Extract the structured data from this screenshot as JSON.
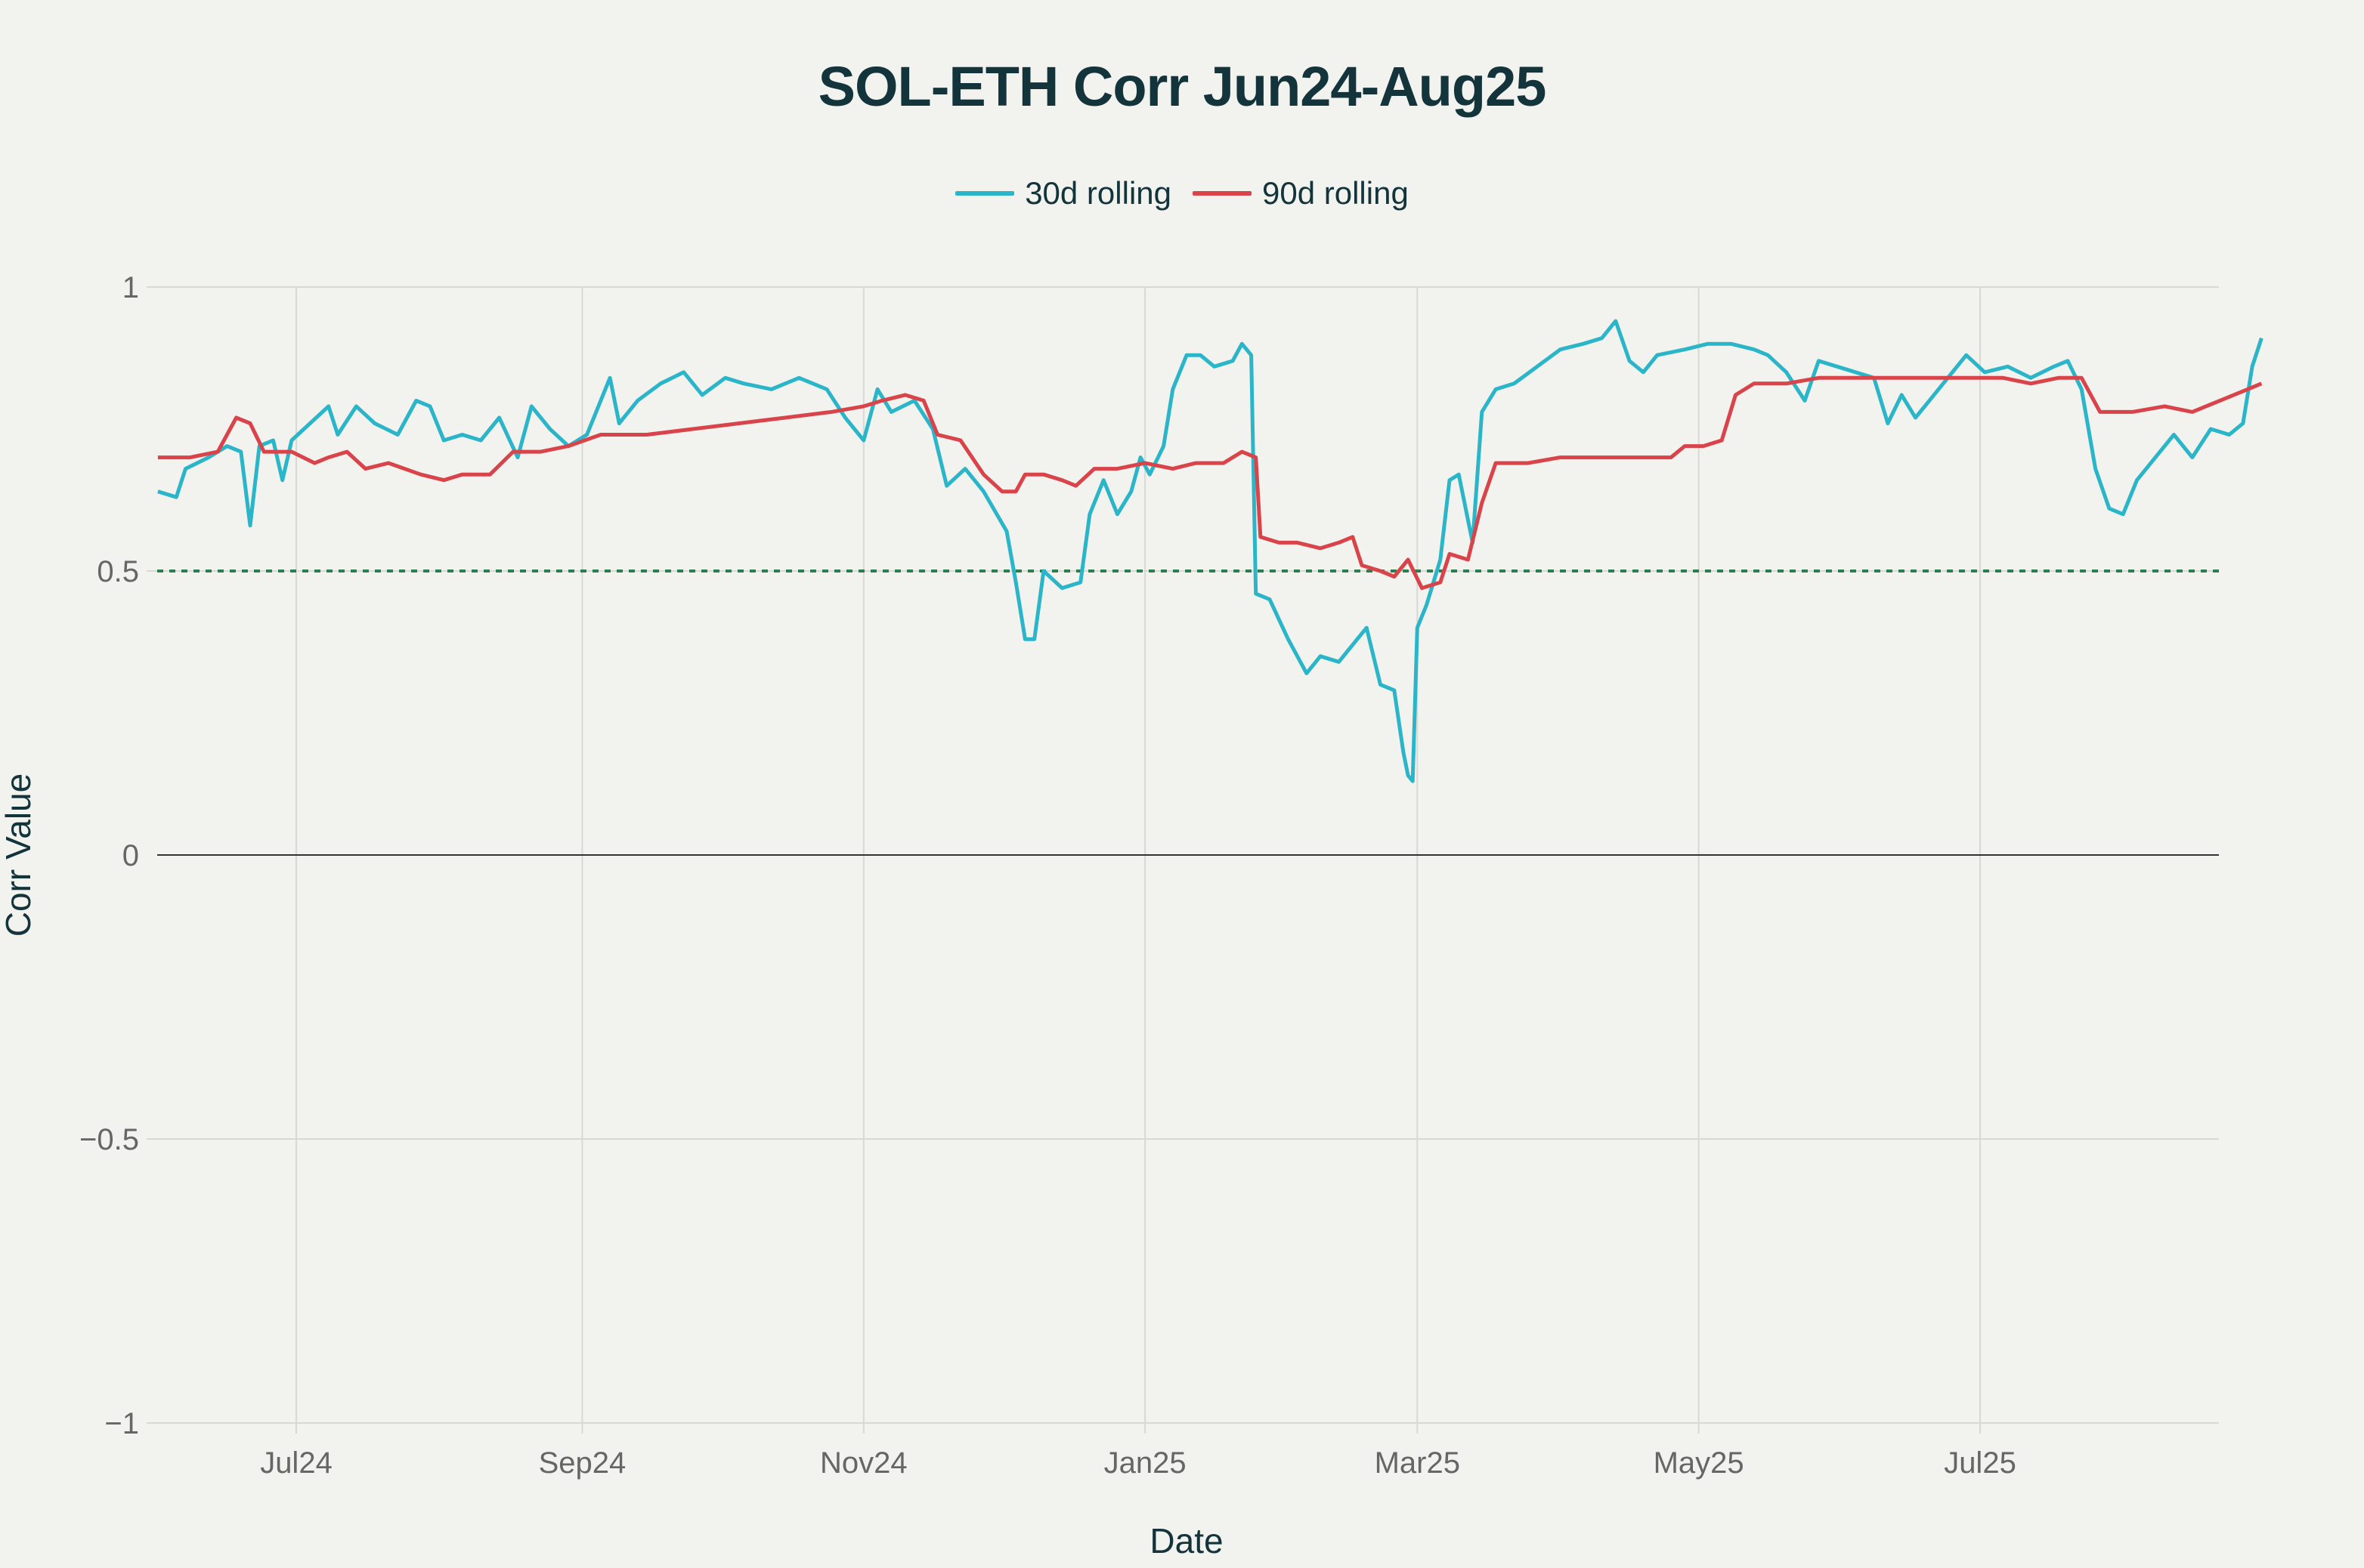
{
  "chart_data": {
    "type": "line",
    "title": "SOL-ETH Corr Jun24-Aug25",
    "xlabel": "Date",
    "ylabel": "Corr Value",
    "ylim": [
      -1,
      1
    ],
    "yticks": [
      1,
      0.5,
      0,
      -0.5,
      -1
    ],
    "ytick_labels": [
      "1",
      "0.5",
      "0",
      "−0.5",
      "−1"
    ],
    "xticks": [
      "Jul24",
      "Sep24",
      "Nov24",
      "Jan25",
      "Mar25",
      "May25",
      "Jul25"
    ],
    "grid": true,
    "legend_position": "top-center",
    "reference_lines": [
      {
        "y": 0.5,
        "style": "dotted",
        "color": "#2e7d4f"
      },
      {
        "y": 0,
        "style": "solid",
        "color": "#333333"
      }
    ],
    "x_range": [
      "2024-06-01",
      "2025-08-31"
    ],
    "series": [
      {
        "name": "30d rolling",
        "color": "#2bb5c9",
        "points": [
          [
            "2024-06-01",
            0.64
          ],
          [
            "2024-06-05",
            0.63
          ],
          [
            "2024-06-07",
            0.68
          ],
          [
            "2024-06-12",
            0.7
          ],
          [
            "2024-06-16",
            0.72
          ],
          [
            "2024-06-19",
            0.71
          ],
          [
            "2024-06-21",
            0.58
          ],
          [
            "2024-06-23",
            0.72
          ],
          [
            "2024-06-26",
            0.73
          ],
          [
            "2024-06-28",
            0.66
          ],
          [
            "2024-06-30",
            0.73
          ],
          [
            "2024-07-04",
            0.76
          ],
          [
            "2024-07-08",
            0.79
          ],
          [
            "2024-07-10",
            0.74
          ],
          [
            "2024-07-14",
            0.79
          ],
          [
            "2024-07-18",
            0.76
          ],
          [
            "2024-07-23",
            0.74
          ],
          [
            "2024-07-27",
            0.8
          ],
          [
            "2024-07-30",
            0.79
          ],
          [
            "2024-08-02",
            0.73
          ],
          [
            "2024-08-06",
            0.74
          ],
          [
            "2024-08-10",
            0.73
          ],
          [
            "2024-08-14",
            0.77
          ],
          [
            "2024-08-18",
            0.7
          ],
          [
            "2024-08-21",
            0.79
          ],
          [
            "2024-08-25",
            0.75
          ],
          [
            "2024-08-29",
            0.72
          ],
          [
            "2024-09-02",
            0.74
          ],
          [
            "2024-09-07",
            0.84
          ],
          [
            "2024-09-09",
            0.76
          ],
          [
            "2024-09-13",
            0.8
          ],
          [
            "2024-09-18",
            0.83
          ],
          [
            "2024-09-23",
            0.85
          ],
          [
            "2024-09-27",
            0.81
          ],
          [
            "2024-10-02",
            0.84
          ],
          [
            "2024-10-06",
            0.83
          ],
          [
            "2024-10-12",
            0.82
          ],
          [
            "2024-10-18",
            0.84
          ],
          [
            "2024-10-24",
            0.82
          ],
          [
            "2024-10-28",
            0.77
          ],
          [
            "2024-11-01",
            0.73
          ],
          [
            "2024-11-04",
            0.82
          ],
          [
            "2024-11-07",
            0.78
          ],
          [
            "2024-11-12",
            0.8
          ],
          [
            "2024-11-16",
            0.75
          ],
          [
            "2024-11-19",
            0.65
          ],
          [
            "2024-11-23",
            0.68
          ],
          [
            "2024-11-27",
            0.64
          ],
          [
            "2024-12-02",
            0.57
          ],
          [
            "2024-12-04",
            0.48
          ],
          [
            "2024-12-06",
            0.38
          ],
          [
            "2024-12-08",
            0.38
          ],
          [
            "2024-12-10",
            0.5
          ],
          [
            "2024-12-14",
            0.47
          ],
          [
            "2024-12-18",
            0.48
          ],
          [
            "2024-12-20",
            0.6
          ],
          [
            "2024-12-23",
            0.66
          ],
          [
            "2024-12-26",
            0.6
          ],
          [
            "2024-12-29",
            0.64
          ],
          [
            "2024-12-31",
            0.7
          ],
          [
            "2025-01-02",
            0.67
          ],
          [
            "2025-01-05",
            0.72
          ],
          [
            "2025-01-07",
            0.82
          ],
          [
            "2025-01-10",
            0.88
          ],
          [
            "2025-01-13",
            0.88
          ],
          [
            "2025-01-16",
            0.86
          ],
          [
            "2025-01-20",
            0.87
          ],
          [
            "2025-01-22",
            0.9
          ],
          [
            "2025-01-24",
            0.88
          ],
          [
            "2025-01-25",
            0.46
          ],
          [
            "2025-01-28",
            0.45
          ],
          [
            "2025-02-01",
            0.38
          ],
          [
            "2025-02-05",
            0.32
          ],
          [
            "2025-02-08",
            0.35
          ],
          [
            "2025-02-12",
            0.34
          ],
          [
            "2025-02-16",
            0.38
          ],
          [
            "2025-02-18",
            0.4
          ],
          [
            "2025-02-21",
            0.3
          ],
          [
            "2025-02-24",
            0.29
          ],
          [
            "2025-02-26",
            0.18
          ],
          [
            "2025-02-27",
            0.14
          ],
          [
            "2025-02-28",
            0.13
          ],
          [
            "2025-03-01",
            0.4
          ],
          [
            "2025-03-03",
            0.44
          ],
          [
            "2025-03-06",
            0.52
          ],
          [
            "2025-03-08",
            0.66
          ],
          [
            "2025-03-10",
            0.67
          ],
          [
            "2025-03-13",
            0.55
          ],
          [
            "2025-03-15",
            0.78
          ],
          [
            "2025-03-18",
            0.82
          ],
          [
            "2025-03-22",
            0.83
          ],
          [
            "2025-03-27",
            0.86
          ],
          [
            "2025-04-01",
            0.89
          ],
          [
            "2025-04-06",
            0.9
          ],
          [
            "2025-04-10",
            0.91
          ],
          [
            "2025-04-13",
            0.94
          ],
          [
            "2025-04-16",
            0.87
          ],
          [
            "2025-04-19",
            0.85
          ],
          [
            "2025-04-22",
            0.88
          ],
          [
            "2025-04-28",
            0.89
          ],
          [
            "2025-05-03",
            0.9
          ],
          [
            "2025-05-08",
            0.9
          ],
          [
            "2025-05-13",
            0.89
          ],
          [
            "2025-05-16",
            0.88
          ],
          [
            "2025-05-20",
            0.85
          ],
          [
            "2025-05-24",
            0.8
          ],
          [
            "2025-05-27",
            0.87
          ],
          [
            "2025-05-31",
            0.86
          ],
          [
            "2025-06-04",
            0.85
          ],
          [
            "2025-06-08",
            0.84
          ],
          [
            "2025-06-11",
            0.76
          ],
          [
            "2025-06-14",
            0.81
          ],
          [
            "2025-06-17",
            0.77
          ],
          [
            "2025-06-20",
            0.8
          ],
          [
            "2025-06-24",
            0.84
          ],
          [
            "2025-06-28",
            0.88
          ],
          [
            "2025-07-02",
            0.85
          ],
          [
            "2025-07-07",
            0.86
          ],
          [
            "2025-07-12",
            0.84
          ],
          [
            "2025-07-17",
            0.86
          ],
          [
            "2025-07-20",
            0.87
          ],
          [
            "2025-07-23",
            0.82
          ],
          [
            "2025-07-26",
            0.68
          ],
          [
            "2025-07-29",
            0.61
          ],
          [
            "2025-08-01",
            0.6
          ],
          [
            "2025-08-04",
            0.66
          ],
          [
            "2025-08-08",
            0.7
          ],
          [
            "2025-08-12",
            0.74
          ],
          [
            "2025-08-16",
            0.7
          ],
          [
            "2025-08-20",
            0.75
          ],
          [
            "2025-08-24",
            0.74
          ],
          [
            "2025-08-27",
            0.76
          ],
          [
            "2025-08-29",
            0.86
          ],
          [
            "2025-08-31",
            0.91
          ]
        ]
      },
      {
        "name": "90d rolling",
        "color": "#d9434a",
        "points": [
          [
            "2024-06-01",
            0.7
          ],
          [
            "2024-06-08",
            0.7
          ],
          [
            "2024-06-14",
            0.71
          ],
          [
            "2024-06-18",
            0.77
          ],
          [
            "2024-06-21",
            0.76
          ],
          [
            "2024-06-24",
            0.71
          ],
          [
            "2024-06-30",
            0.71
          ],
          [
            "2024-07-05",
            0.69
          ],
          [
            "2024-07-08",
            0.7
          ],
          [
            "2024-07-12",
            0.71
          ],
          [
            "2024-07-16",
            0.68
          ],
          [
            "2024-07-21",
            0.69
          ],
          [
            "2024-07-28",
            0.67
          ],
          [
            "2024-08-02",
            0.66
          ],
          [
            "2024-08-06",
            0.67
          ],
          [
            "2024-08-12",
            0.67
          ],
          [
            "2024-08-17",
            0.71
          ],
          [
            "2024-08-23",
            0.71
          ],
          [
            "2024-08-29",
            0.72
          ],
          [
            "2024-09-05",
            0.74
          ],
          [
            "2024-09-15",
            0.74
          ],
          [
            "2024-09-25",
            0.75
          ],
          [
            "2024-10-05",
            0.76
          ],
          [
            "2024-10-15",
            0.77
          ],
          [
            "2024-10-25",
            0.78
          ],
          [
            "2024-11-01",
            0.79
          ],
          [
            "2024-11-05",
            0.8
          ],
          [
            "2024-11-10",
            0.81
          ],
          [
            "2024-11-14",
            0.8
          ],
          [
            "2024-11-17",
            0.74
          ],
          [
            "2024-11-22",
            0.73
          ],
          [
            "2024-11-27",
            0.67
          ],
          [
            "2024-12-01",
            0.64
          ],
          [
            "2024-12-04",
            0.64
          ],
          [
            "2024-12-06",
            0.67
          ],
          [
            "2024-12-10",
            0.67
          ],
          [
            "2024-12-14",
            0.66
          ],
          [
            "2024-12-17",
            0.65
          ],
          [
            "2024-12-21",
            0.68
          ],
          [
            "2024-12-26",
            0.68
          ],
          [
            "2025-01-01",
            0.69
          ],
          [
            "2025-01-07",
            0.68
          ],
          [
            "2025-01-12",
            0.69
          ],
          [
            "2025-01-18",
            0.69
          ],
          [
            "2025-01-22",
            0.71
          ],
          [
            "2025-01-25",
            0.7
          ],
          [
            "2025-01-26",
            0.56
          ],
          [
            "2025-01-30",
            0.55
          ],
          [
            "2025-02-03",
            0.55
          ],
          [
            "2025-02-08",
            0.54
          ],
          [
            "2025-02-12",
            0.55
          ],
          [
            "2025-02-15",
            0.56
          ],
          [
            "2025-02-17",
            0.51
          ],
          [
            "2025-02-21",
            0.5
          ],
          [
            "2025-02-24",
            0.49
          ],
          [
            "2025-02-27",
            0.52
          ],
          [
            "2025-03-02",
            0.47
          ],
          [
            "2025-03-06",
            0.48
          ],
          [
            "2025-03-08",
            0.53
          ],
          [
            "2025-03-12",
            0.52
          ],
          [
            "2025-03-15",
            0.62
          ],
          [
            "2025-03-18",
            0.69
          ],
          [
            "2025-03-25",
            0.69
          ],
          [
            "2025-04-01",
            0.7
          ],
          [
            "2025-04-10",
            0.7
          ],
          [
            "2025-04-20",
            0.7
          ],
          [
            "2025-04-25",
            0.7
          ],
          [
            "2025-04-28",
            0.72
          ],
          [
            "2025-05-02",
            0.72
          ],
          [
            "2025-05-06",
            0.73
          ],
          [
            "2025-05-09",
            0.81
          ],
          [
            "2025-05-13",
            0.83
          ],
          [
            "2025-05-20",
            0.83
          ],
          [
            "2025-05-27",
            0.84
          ],
          [
            "2025-06-03",
            0.84
          ],
          [
            "2025-06-10",
            0.84
          ],
          [
            "2025-06-17",
            0.84
          ],
          [
            "2025-06-24",
            0.84
          ],
          [
            "2025-06-30",
            0.84
          ],
          [
            "2025-07-06",
            0.84
          ],
          [
            "2025-07-12",
            0.83
          ],
          [
            "2025-07-18",
            0.84
          ],
          [
            "2025-07-23",
            0.84
          ],
          [
            "2025-07-27",
            0.78
          ],
          [
            "2025-08-03",
            0.78
          ],
          [
            "2025-08-10",
            0.79
          ],
          [
            "2025-08-16",
            0.78
          ],
          [
            "2025-08-22",
            0.8
          ],
          [
            "2025-08-28",
            0.82
          ],
          [
            "2025-08-31",
            0.83
          ]
        ]
      }
    ]
  },
  "legend": {
    "items": [
      {
        "label": "30d rolling",
        "color": "#2bb5c9"
      },
      {
        "label": "90d rolling",
        "color": "#d9434a"
      }
    ]
  }
}
